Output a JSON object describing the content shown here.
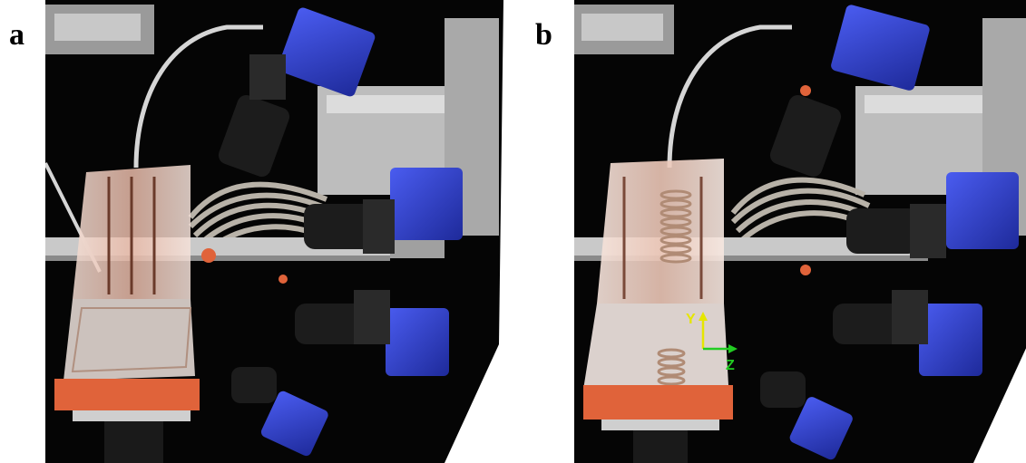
{
  "panels": [
    {
      "label": "a"
    },
    {
      "label": "b"
    }
  ],
  "axes": {
    "y_label": "Y",
    "z_label": "Z"
  },
  "colors": {
    "background": "#ffffff",
    "scene_dark": "#050505",
    "camera_blue": "#2d3fc7",
    "tank_pink": "#efd0c4",
    "base_orange": "#e0633a",
    "axis_yellow": "#e6e600",
    "axis_green": "#22cc22"
  }
}
